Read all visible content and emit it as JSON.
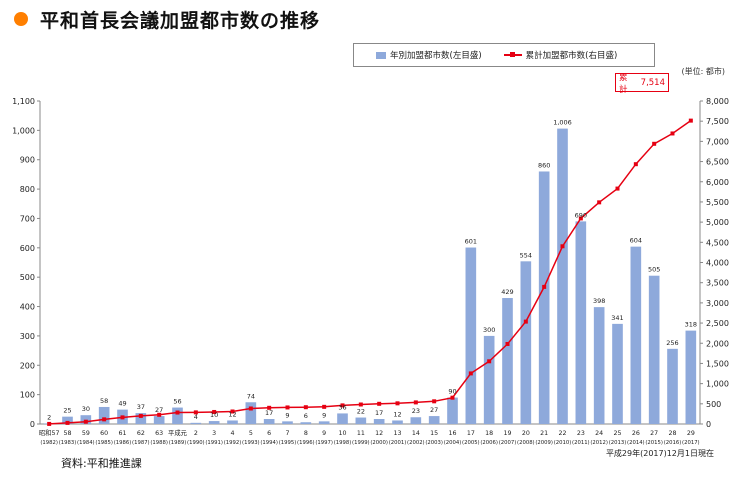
{
  "header": {
    "title": "平和首長会議加盟都市数の推移"
  },
  "unit_label": "(単位: 都市)",
  "total": {
    "label": "累計",
    "value": "7,514"
  },
  "source": "資料:平和推進課",
  "as_of": "平成29年(2017)12月1日現在",
  "colors": {
    "bar": "#8ea9db",
    "line": "#e60012",
    "title_dot": "#ff7f00"
  },
  "chart_data": {
    "type": "bar",
    "legend_position": "top-right",
    "grid": false,
    "categories": [
      "昭和57",
      "58",
      "59",
      "60",
      "61",
      "62",
      "63",
      "平成元",
      "2",
      "3",
      "4",
      "5",
      "6",
      "7",
      "8",
      "9",
      "10",
      "11",
      "12",
      "13",
      "14",
      "15",
      "16",
      "17",
      "18",
      "19",
      "20",
      "21",
      "22",
      "23",
      "24",
      "25",
      "26",
      "27",
      "28",
      "29"
    ],
    "categories_year": [
      "(1982)",
      "(1983)",
      "(1984)",
      "(1985)",
      "(1986)",
      "(1987)",
      "(1988)",
      "(1989)",
      "(1990)",
      "(1991)",
      "(1992)",
      "(1993)",
      "(1994)",
      "(1995)",
      "(1996)",
      "(1997)",
      "(1998)",
      "(1999)",
      "(2000)",
      "(2001)",
      "(2002)",
      "(2003)",
      "(2004)",
      "(2005)",
      "(2006)",
      "(2007)",
      "(2008)",
      "(2009)",
      "(2010)",
      "(2011)",
      "(2012)",
      "(2013)",
      "(2014)",
      "(2015)",
      "(2016)",
      "(2017)"
    ],
    "series": [
      {
        "name": "年別加盟都市数(左目盛)",
        "type": "bar",
        "axis": "left",
        "values": [
          2,
          25,
          30,
          58,
          49,
          37,
          27,
          56,
          4,
          10,
          12,
          74,
          17,
          9,
          6,
          9,
          36,
          22,
          17,
          12,
          23,
          27,
          90,
          601,
          300,
          429,
          554,
          860,
          1006,
          690,
          398,
          341,
          604,
          505,
          256,
          318
        ]
      },
      {
        "name": "累計加盟都市数(右目盛)",
        "type": "line",
        "axis": "right",
        "values": [
          2,
          27,
          57,
          115,
          164,
          201,
          228,
          284,
          288,
          298,
          310,
          384,
          401,
          410,
          416,
          425,
          461,
          483,
          500,
          512,
          535,
          562,
          652,
          1253,
          1553,
          1982,
          2536,
          3396,
          4402,
          5092,
          5490,
          5831,
          6435,
          6940,
          7196,
          7514
        ]
      }
    ],
    "ylim_left": [
      0,
      1100
    ],
    "yticks_left": [
      "0",
      "100",
      "200",
      "300",
      "400",
      "500",
      "600",
      "700",
      "800",
      "900",
      "1,000",
      "1,100"
    ],
    "ylim_right": [
      0,
      8000
    ],
    "yticks_right": [
      "0",
      "500",
      "1,000",
      "1,500",
      "2,000",
      "2,500",
      "3,000",
      "3,500",
      "4,000",
      "4,500",
      "5,000",
      "5,500",
      "6,000",
      "6,500",
      "7,000",
      "7,500",
      "8,000"
    ]
  }
}
